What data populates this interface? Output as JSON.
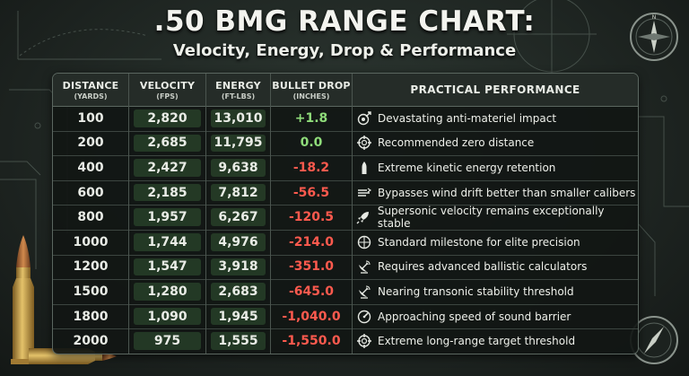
{
  "title": ".50 BMG RANGE CHART:",
  "subtitle": "Velocity, Energy, Drop & Performance",
  "headers": {
    "distance": "DISTANCE",
    "distance_unit": "(YARDS)",
    "velocity": "VELOCITY",
    "velocity_unit": "(FPS)",
    "energy": "ENERGY",
    "energy_unit": "(FT-LBS)",
    "drop": "BULLET DROP",
    "drop_unit": "(INCHES)",
    "performance": "PRACTICAL PERFORMANCE"
  },
  "rows": [
    {
      "distance": "100",
      "velocity": "2,820",
      "energy": "13,010",
      "drop": "+1.8",
      "performance": "Devastating anti-materiel impact",
      "icon": "target-burst-icon"
    },
    {
      "distance": "200",
      "velocity": "2,685",
      "energy": "11,795",
      "drop": "0.0",
      "performance": "Recommended zero distance",
      "icon": "crosshair-icon"
    },
    {
      "distance": "400",
      "velocity": "2,427",
      "energy": "9,638",
      "drop": "-18.2",
      "performance": "Extreme kinetic energy retention",
      "icon": "bullet-icon"
    },
    {
      "distance": "600",
      "velocity": "2,185",
      "energy": "7,812",
      "drop": "-56.5",
      "performance": "Bypasses wind drift better than smaller calibers",
      "icon": "wind-icon"
    },
    {
      "distance": "800",
      "velocity": "1,957",
      "energy": "6,267",
      "drop": "-120.5",
      "performance": "Supersonic velocity remains exceptionally stable",
      "icon": "rocket-icon"
    },
    {
      "distance": "1000",
      "velocity": "1,744",
      "energy": "4,976",
      "drop": "-214.0",
      "performance": "Standard milestone for elite precision",
      "icon": "scope-icon"
    },
    {
      "distance": "1200",
      "velocity": "1,547",
      "energy": "3,918",
      "drop": "-351.0",
      "performance": "Requires advanced ballistic calculators",
      "icon": "satellite-dish-icon"
    },
    {
      "distance": "1500",
      "velocity": "1,280",
      "energy": "2,683",
      "drop": "-645.0",
      "performance": "Nearing transonic stability threshold",
      "icon": "satellite-dish-icon"
    },
    {
      "distance": "1800",
      "velocity": "1,090",
      "energy": "1,945",
      "drop": "-1,040.0",
      "performance": "Approaching speed of sound barrier",
      "icon": "gauge-icon"
    },
    {
      "distance": "2000",
      "velocity": "975",
      "energy": "1,555",
      "drop": "-1,550.0",
      "performance": "Extreme long-range target threshold",
      "icon": "crosshair-icon"
    }
  ],
  "colors": {
    "background": "#1d2320",
    "positive_drop": "#8fdc7a",
    "negative_drop": "#ff5a4e",
    "highlight": "#46784680"
  }
}
